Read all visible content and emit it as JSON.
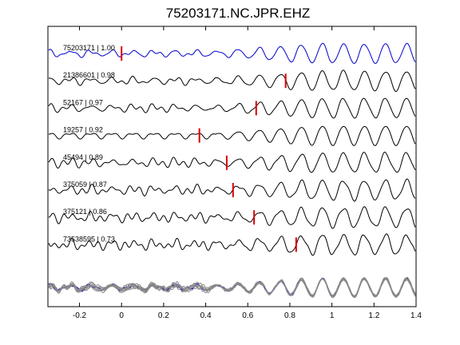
{
  "chart_data": {
    "type": "line",
    "title": "75203171.NC.JPR.EHZ",
    "xlabel": "",
    "ylabel": "",
    "xlim": [
      -0.35,
      1.4
    ],
    "xticks": [
      -0.2,
      0,
      0.2,
      0.4,
      0.6,
      0.8,
      1,
      1.2,
      1.4
    ],
    "xtick_labels": [
      "-0.2",
      "0",
      "0.2",
      "0.4",
      "0.6",
      "0.8",
      "1",
      "1.2",
      "1.4"
    ],
    "grid": false,
    "legend": "none",
    "colors": {
      "reference_trace": "#0000cc",
      "other_traces": "#000000",
      "pick_marker": "#dd0000",
      "overlay_traces": "#888888"
    },
    "series": [
      {
        "name": "75203171 | 1.00",
        "pick_time": 0.0,
        "reference": true
      },
      {
        "name": "21386601 | 0.98",
        "pick_time": 0.78
      },
      {
        "name": "52167 | 0.97",
        "pick_time": 0.64
      },
      {
        "name": "19257 | 0.92",
        "pick_time": 0.37
      },
      {
        "name": "45494 | 0.89",
        "pick_time": 0.5
      },
      {
        "name": "375059 | 0.87",
        "pick_time": 0.53
      },
      {
        "name": "375121 | 0.86",
        "pick_time": 0.63
      },
      {
        "name": "73538595 | 0.73",
        "pick_time": 0.83
      }
    ]
  }
}
